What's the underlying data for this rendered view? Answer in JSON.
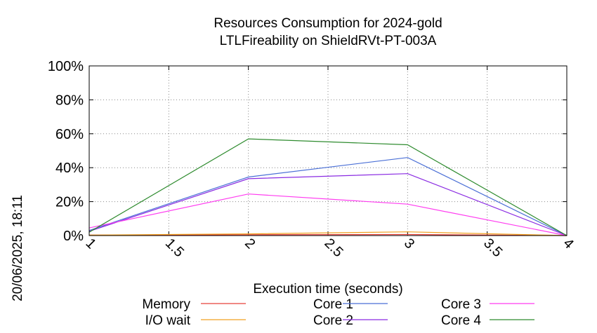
{
  "chart_data": {
    "type": "line",
    "title": "Resources Consumption for 2024-gold",
    "subtitle": "LTLFireability on ShieldRVt-PT-003A",
    "xlabel": "Execution time (seconds)",
    "ylabel": "",
    "side_label": "20/06/2025, 18:11",
    "xlim": [
      1,
      4
    ],
    "ylim": [
      0,
      100
    ],
    "xticks": [
      "1",
      "1.5",
      "2",
      "2.5",
      "3",
      "3.5",
      "4"
    ],
    "yticks": [
      "0%",
      "20%",
      "40%",
      "60%",
      "80%",
      "100%"
    ],
    "grid": true,
    "legend_placement": "bottom",
    "x": [
      1,
      2,
      3,
      4
    ],
    "series": [
      {
        "name": "Memory",
        "color": "#e8413a",
        "values": [
          0.3,
          0.5,
          0.6,
          0
        ]
      },
      {
        "name": "I/O wait",
        "color": "#f0a020",
        "values": [
          0.3,
          1.0,
          2.2,
          0
        ]
      },
      {
        "name": "Core 1",
        "color": "#4a6fd6",
        "values": [
          3,
          34.5,
          46,
          0
        ]
      },
      {
        "name": "Core 2",
        "color": "#8a2be2",
        "values": [
          2.5,
          33.5,
          36.5,
          0
        ]
      },
      {
        "name": "Core 3",
        "color": "#ff3cf0",
        "values": [
          4.5,
          24.5,
          18.5,
          0
        ]
      },
      {
        "name": "Core 4",
        "color": "#2e8b2e",
        "values": [
          2,
          57,
          53.5,
          0
        ]
      }
    ]
  }
}
